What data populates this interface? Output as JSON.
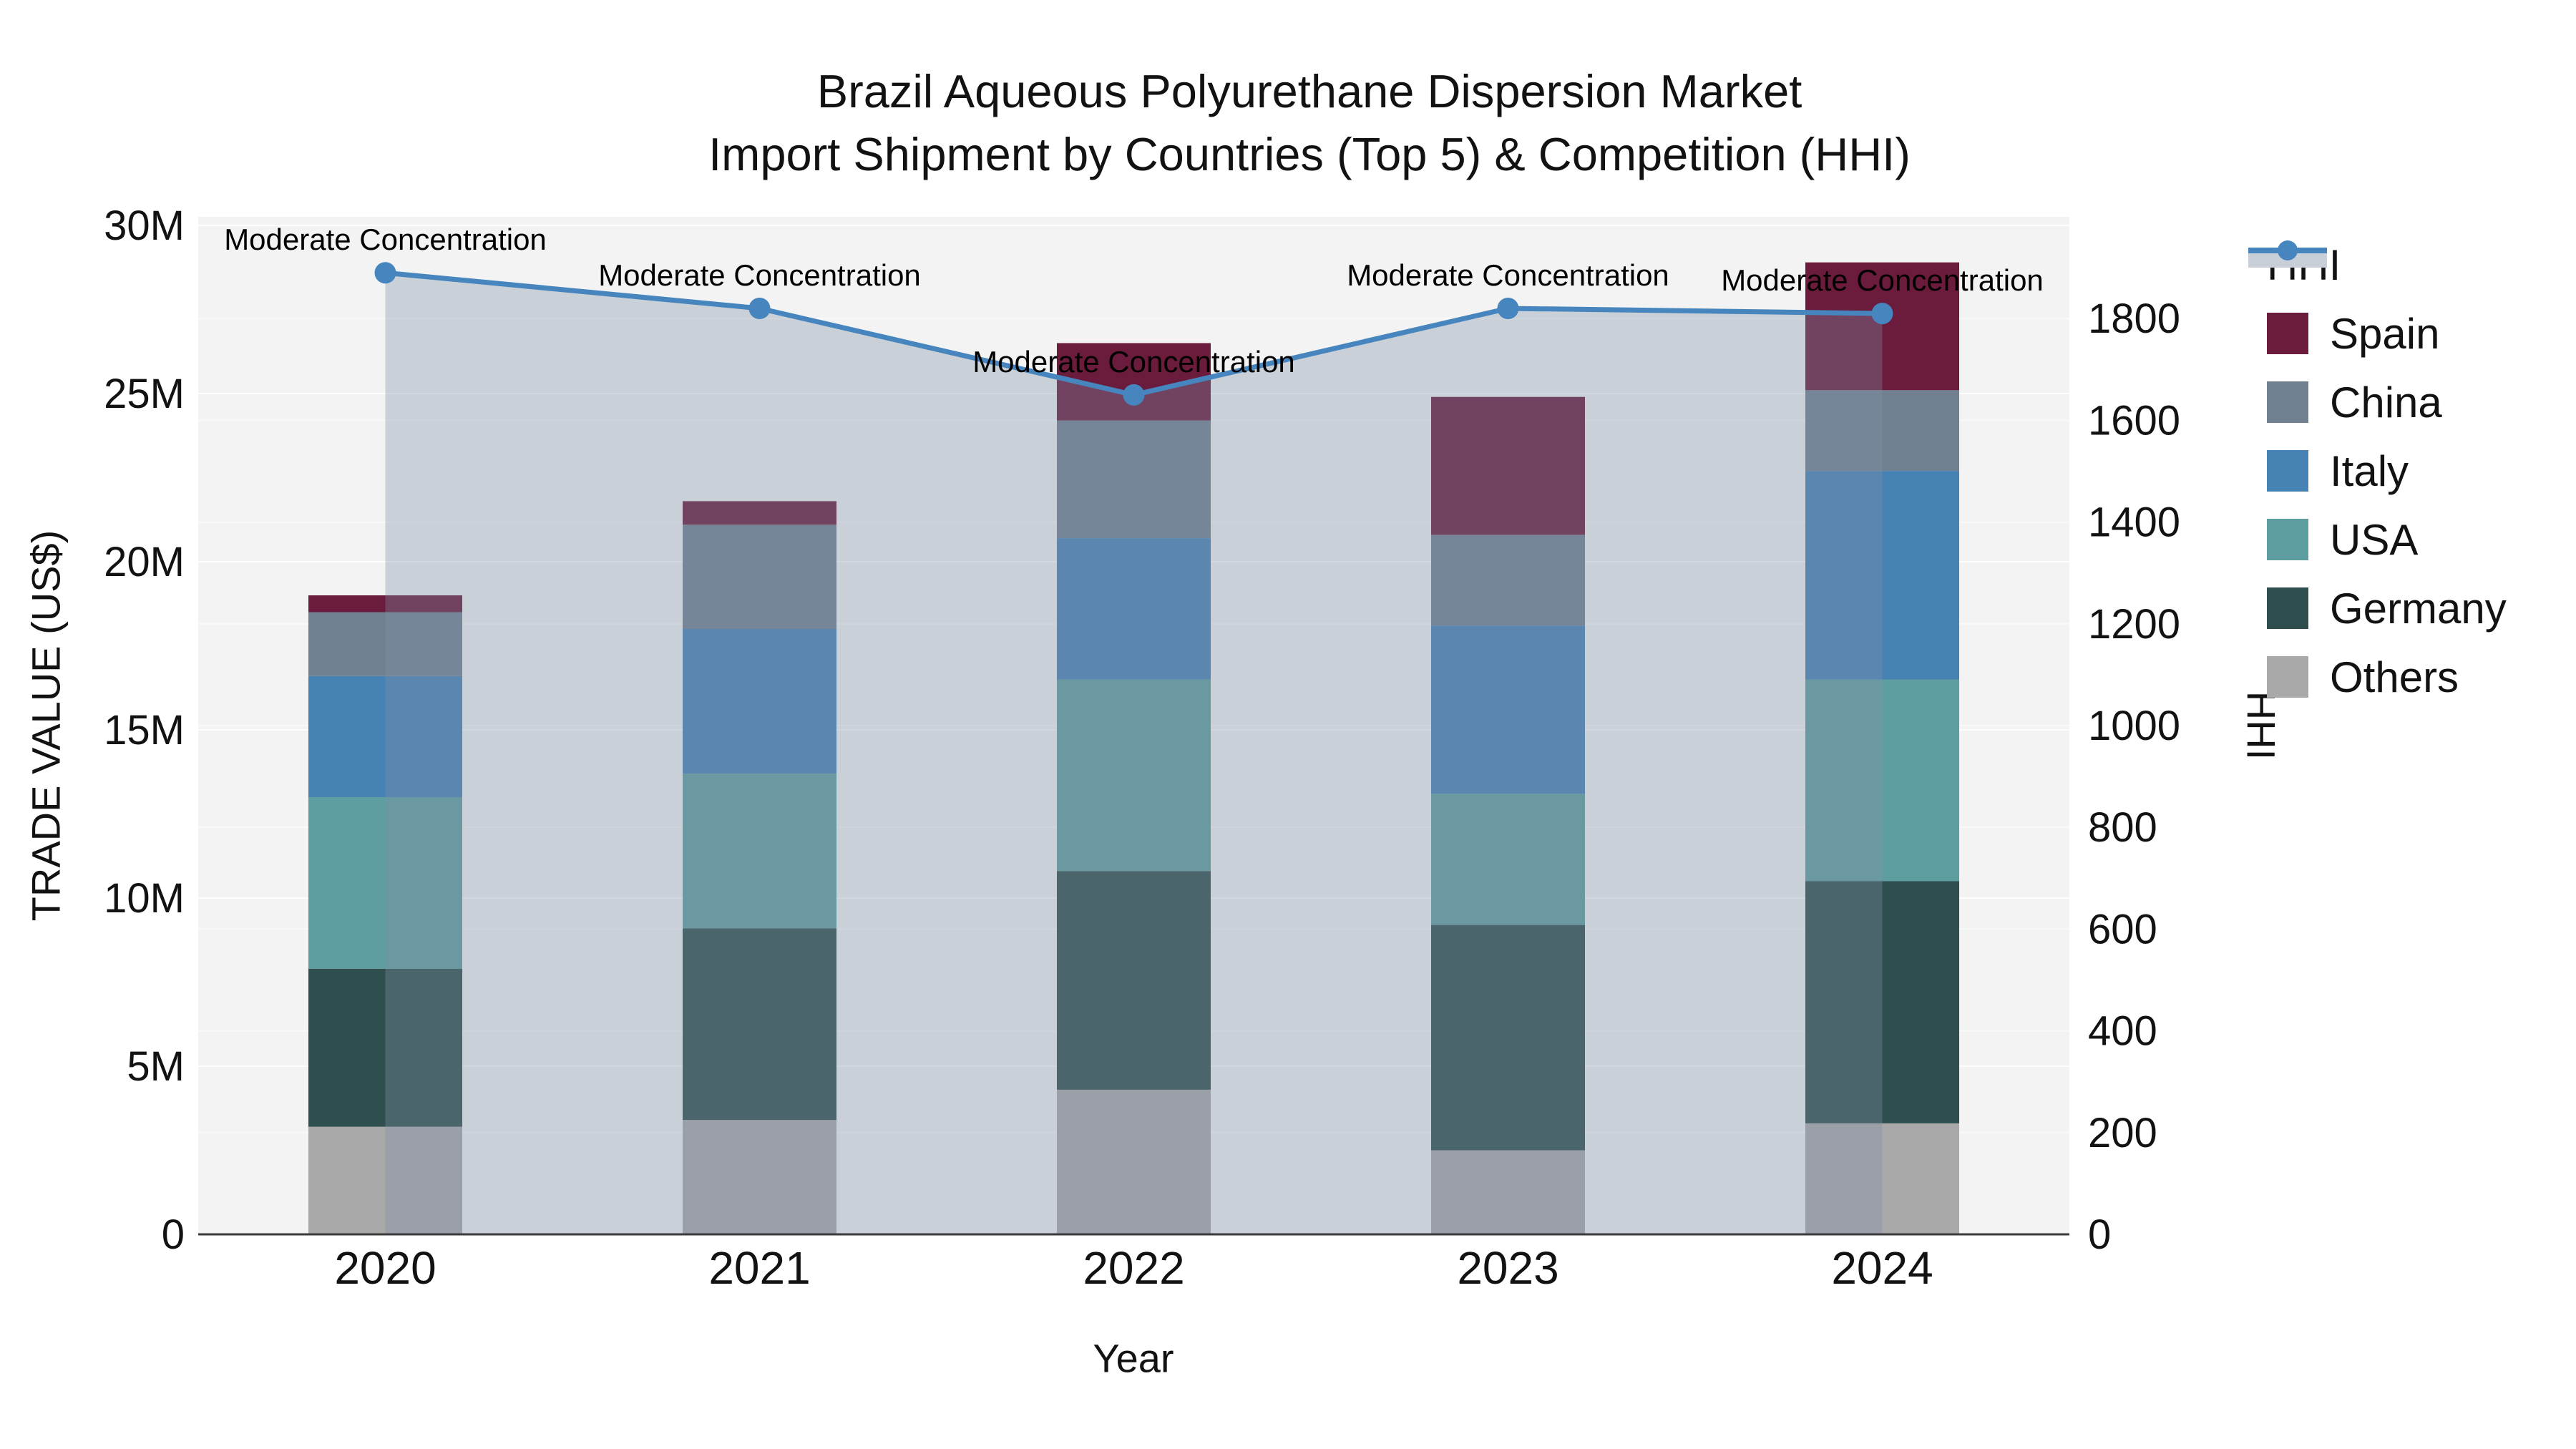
{
  "title": {
    "line1": "Brazil Aqueous Polyurethane Dispersion Market",
    "line2": "Import Shipment by Countries (Top 5) & Competition (HHI)"
  },
  "chart_data": {
    "type": "bar",
    "subtype": "stacked-bars-with-line-overlay",
    "categories": [
      "2020",
      "2021",
      "2022",
      "2023",
      "2024"
    ],
    "series": [
      {
        "key": "others",
        "name": "Others",
        "color": "#A9A9A9",
        "values": [
          3.2,
          3.4,
          4.3,
          2.5,
          3.3
        ]
      },
      {
        "key": "germany",
        "name": "Germany",
        "color": "#2F4F4F",
        "values": [
          4.7,
          5.7,
          6.5,
          6.7,
          7.2
        ]
      },
      {
        "key": "usa",
        "name": "USA",
        "color": "#5F9EA0",
        "values": [
          5.1,
          4.6,
          5.7,
          3.9,
          6.0
        ]
      },
      {
        "key": "italy",
        "name": "Italy",
        "color": "#4682B4",
        "values": [
          3.6,
          4.3,
          4.2,
          5.0,
          6.2
        ]
      },
      {
        "key": "china",
        "name": "China",
        "color": "#708090",
        "values": [
          1.9,
          3.1,
          3.5,
          2.7,
          2.4
        ]
      },
      {
        "key": "spain",
        "name": "Spain",
        "color": "#6B1B3C",
        "values": [
          0.5,
          0.7,
          2.3,
          4.1,
          3.8
        ]
      }
    ],
    "bar_totals_musd": [
      19.0,
      21.8,
      26.5,
      24.9,
      28.9
    ],
    "line_series": {
      "key": "hhi",
      "name": "HHI",
      "color": "#4685BD",
      "fill_color": "rgba(128,142,165,0.35)",
      "values": [
        1890,
        1820,
        1650,
        1820,
        1810
      ]
    },
    "annotations": [
      {
        "text": "Moderate Concentration"
      },
      {
        "text": "Moderate Concentration"
      },
      {
        "text": "Moderate Concentration"
      },
      {
        "text": "Moderate Concentration"
      },
      {
        "text": "Moderate Concentration"
      }
    ],
    "title": "Brazil Aqueous Polyurethane Dispersion Market Import Shipment by Countries (Top 5) & Competition (HHI)",
    "xlabel": "Year",
    "ylabel": "TRADE VALUE (US$)",
    "y2label": "HHI",
    "ylim_left_musd": [
      0,
      30.26
    ],
    "ylim_right_hhi": [
      0,
      2000
    ],
    "grid": "on",
    "legend_position": "right",
    "value_unit": "M US$",
    "left_ticks": [
      {
        "value": 0,
        "label": "0"
      },
      {
        "value": 5,
        "label": "5M"
      },
      {
        "value": 10,
        "label": "10M"
      },
      {
        "value": 15,
        "label": "15M"
      },
      {
        "value": 20,
        "label": "20M"
      },
      {
        "value": 25,
        "label": "25M"
      },
      {
        "value": 30,
        "label": "30M"
      }
    ],
    "right_ticks": [
      {
        "value": 0,
        "label": "0"
      },
      {
        "value": 200,
        "label": "200"
      },
      {
        "value": 400,
        "label": "400"
      },
      {
        "value": 600,
        "label": "600"
      },
      {
        "value": 800,
        "label": "800"
      },
      {
        "value": 1000,
        "label": "1000"
      },
      {
        "value": 1200,
        "label": "1200"
      },
      {
        "value": 1400,
        "label": "1400"
      },
      {
        "value": 1600,
        "label": "1600"
      },
      {
        "value": 1800,
        "label": "1800"
      }
    ],
    "legend_order": [
      "HHI",
      "Spain",
      "China",
      "Italy",
      "USA",
      "Germany",
      "Others"
    ]
  },
  "legend": {
    "items": [
      {
        "label": "HHI",
        "swatch": "line-marker-with-area"
      },
      {
        "label": "Spain",
        "swatch": "square",
        "color": "#6B1B3C"
      },
      {
        "label": "China",
        "swatch": "square",
        "color": "#708090"
      },
      {
        "label": "Italy",
        "swatch": "square",
        "color": "#4682B4"
      },
      {
        "label": "USA",
        "swatch": "square",
        "color": "#5F9EA0"
      },
      {
        "label": "Germany",
        "swatch": "square",
        "color": "#2F4F4F"
      },
      {
        "label": "Others",
        "swatch": "square",
        "color": "#A9A9A9"
      }
    ]
  }
}
